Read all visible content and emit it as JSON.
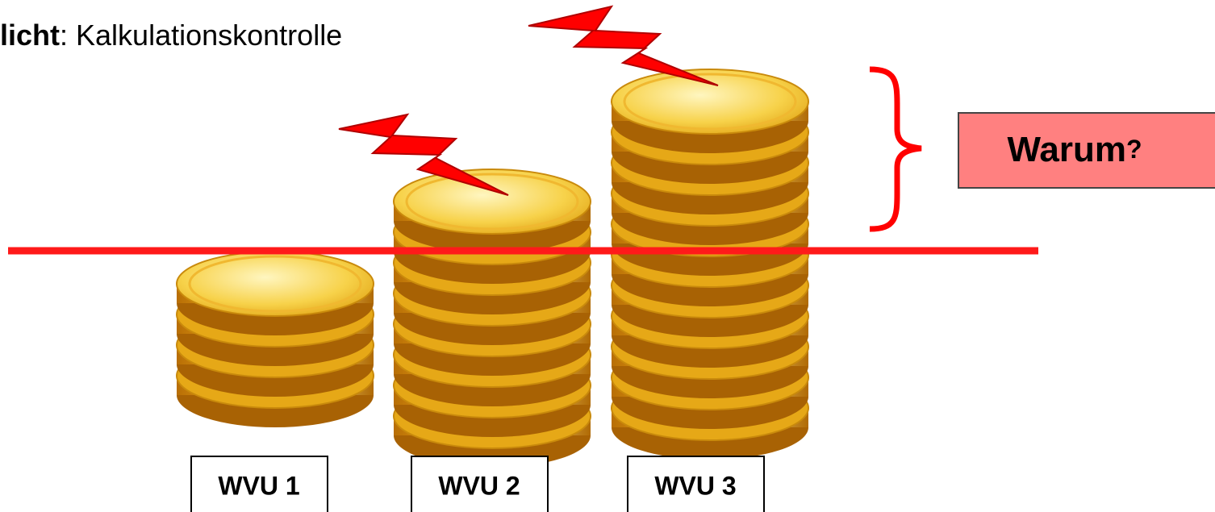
{
  "title": {
    "bold": "licht",
    "rest": ": Kalkulationskontrolle"
  },
  "question": {
    "word": "Warum",
    "mark": "?"
  },
  "labels": [
    "WVU 1",
    "WVU 2",
    "WVU 3"
  ]
}
